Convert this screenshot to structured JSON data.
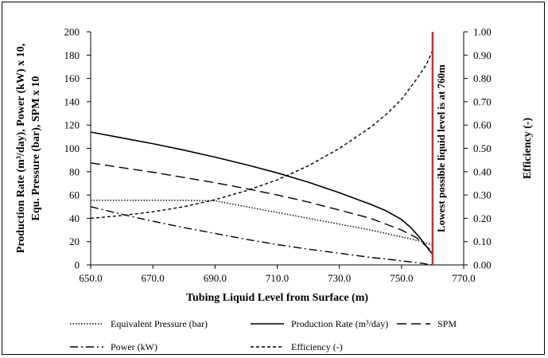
{
  "chart_data": {
    "type": "line",
    "title": "",
    "xlabel": "Tubing Liquid Level from Surface (m)",
    "ylabel_left": [
      "Production Rate (m³/day),  Power (kW) x 10,",
      "Equ. Pressure (bar), SPM x 10"
    ],
    "ylabel_right": "Efficiency (-)",
    "xlim": [
      650,
      770
    ],
    "ylim_left": [
      0,
      200
    ],
    "ylim_right": [
      0,
      1
    ],
    "x_ticks": [
      "650.0",
      "670.0",
      "690.0",
      "710.0",
      "730.0",
      "750.0",
      "770.0"
    ],
    "y_left_ticks": [
      "0",
      "20",
      "40",
      "60",
      "80",
      "100",
      "120",
      "140",
      "160",
      "180",
      "200"
    ],
    "y_right_ticks": [
      "0.00",
      "0.10",
      "0.20",
      "0.30",
      "0.40",
      "0.50",
      "0.60",
      "0.70",
      "0.80",
      "0.90",
      "1.00"
    ],
    "grid": false,
    "legend_position": "bottom",
    "series": [
      {
        "name": "Equivalent Pressure (bar)",
        "style": "dotted",
        "axis": "left",
        "x": [
          650,
          660,
          670,
          680,
          690,
          700,
          710,
          720,
          730,
          740,
          750,
          755,
          760
        ],
        "y": [
          55.5,
          55.5,
          55.5,
          55.5,
          55,
          50,
          45,
          40,
          35,
          30,
          24,
          21,
          17
        ]
      },
      {
        "name": "Production Rate (m³/day)",
        "style": "solid",
        "axis": "left",
        "x": [
          650,
          660,
          670,
          680,
          690,
          700,
          710,
          720,
          730,
          740,
          745,
          750,
          753,
          756,
          758,
          760
        ],
        "y": [
          114,
          109,
          104,
          98.5,
          92.5,
          86,
          79,
          71,
          62,
          52,
          46.5,
          39,
          32,
          23,
          16,
          9
        ]
      },
      {
        "name": "SPM",
        "style": "long-dash",
        "axis": "left",
        "x": [
          650,
          660,
          670,
          680,
          690,
          700,
          710,
          720,
          730,
          740,
          750,
          755,
          758,
          760
        ],
        "y": [
          87.5,
          83.5,
          79.5,
          75,
          70.5,
          65.5,
          60,
          54,
          47,
          40,
          30,
          23,
          16,
          11
        ]
      },
      {
        "name": "Power (kW)",
        "style": "dash-dot",
        "axis": "left",
        "x": [
          650,
          660,
          670,
          680,
          690,
          700,
          710,
          720,
          730,
          740,
          750,
          755,
          760
        ],
        "y": [
          50,
          43.5,
          37.5,
          32,
          27,
          22,
          17.5,
          13.5,
          10,
          6.5,
          3.5,
          2,
          0
        ]
      },
      {
        "name": "Efficiency (-)",
        "style": "short-dash",
        "axis": "right",
        "x": [
          650,
          660,
          670,
          680,
          690,
          700,
          710,
          720,
          730,
          740,
          745,
          750,
          755,
          758,
          760
        ],
        "y": [
          0.2,
          0.212,
          0.228,
          0.25,
          0.28,
          0.318,
          0.365,
          0.425,
          0.5,
          0.59,
          0.645,
          0.71,
          0.8,
          0.86,
          0.92
        ]
      }
    ],
    "vertical_line": {
      "x": 760,
      "color": "#e8232a"
    },
    "annotation": "Lowest possible liquid level is at  760m"
  },
  "colors": {
    "series": "#000000",
    "limit_line": "#e8232a"
  }
}
